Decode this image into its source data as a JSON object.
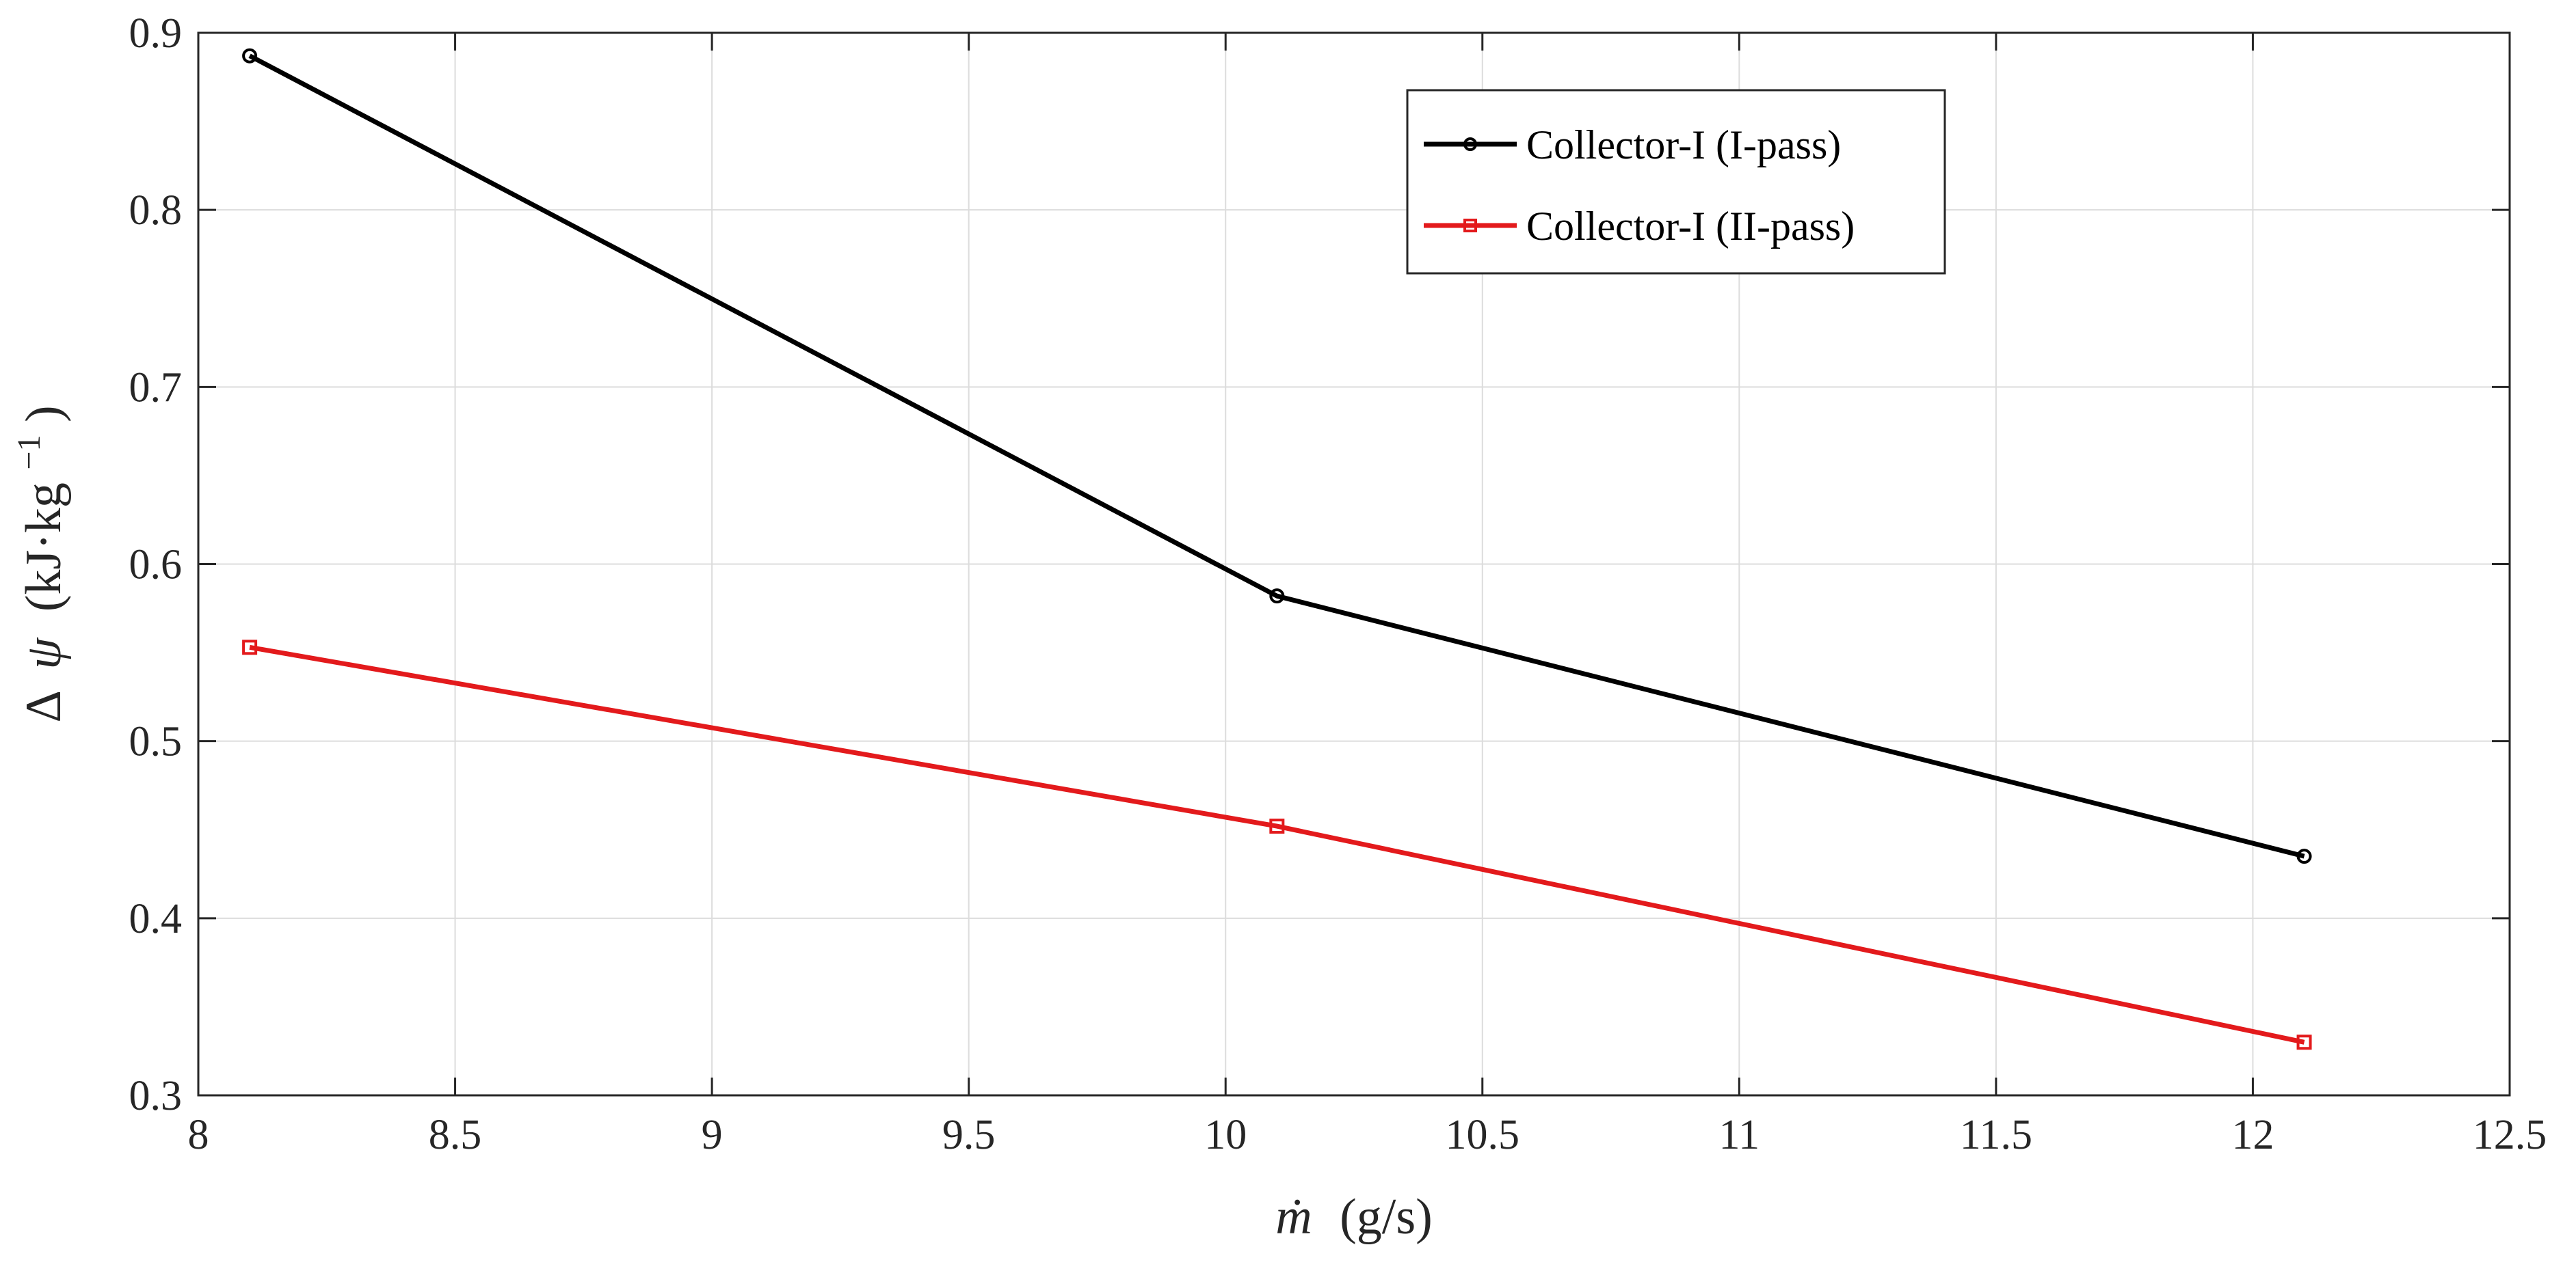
{
  "chart_data": {
    "type": "line",
    "title": "",
    "xlabel": "ṁ (g/s)",
    "xlabel_parts": {
      "symbol": "ṁ",
      "unit": "(g/s)"
    },
    "ylabel": "Δ ψ (kJ·kg⁻¹)",
    "ylabel_parts": {
      "delta": "Δ",
      "symbol": "ψ",
      "unit": "(kJ·kg",
      "exponent": "−1",
      "close": ")"
    },
    "xlim": [
      8,
      12.5
    ],
    "ylim": [
      0.3,
      0.9
    ],
    "xticks": [
      8,
      8.5,
      9,
      9.5,
      10,
      10.5,
      11,
      11.5,
      12,
      12.5
    ],
    "xtick_labels": [
      "8",
      "8.5",
      "9",
      "9.5",
      "10",
      "10.5",
      "11",
      "11.5",
      "12",
      "12.5"
    ],
    "yticks": [
      0.3,
      0.4,
      0.5,
      0.6,
      0.7,
      0.8,
      0.9
    ],
    "ytick_labels": [
      "0.3",
      "0.4",
      "0.5",
      "0.6",
      "0.7",
      "0.8",
      "0.9"
    ],
    "grid": true,
    "legend_position": "top-right",
    "x": [
      8.1,
      10.1,
      12.1
    ],
    "series": [
      {
        "name": "Collector-I (I-pass)",
        "color": "#000000",
        "marker": "circle",
        "values": [
          0.887,
          0.582,
          0.435
        ]
      },
      {
        "name": "Collector-I (II-pass)",
        "color": "#e31a1c",
        "marker": "square",
        "values": [
          0.553,
          0.452,
          0.33
        ]
      }
    ]
  }
}
